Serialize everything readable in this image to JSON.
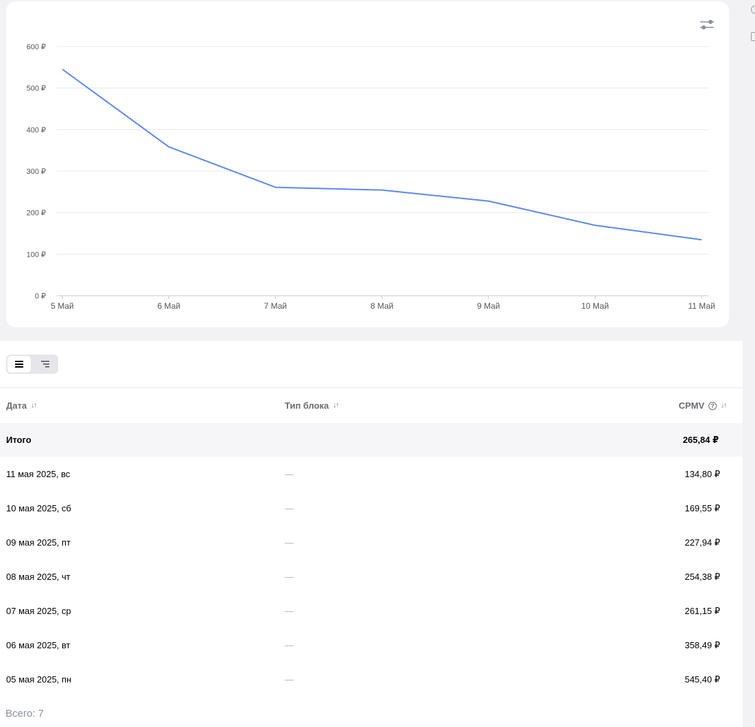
{
  "chart_data": {
    "type": "line",
    "categories": [
      "5 Май",
      "6 Май",
      "7 Май",
      "8 Май",
      "9 Май",
      "10 Май",
      "11 Май"
    ],
    "series": [
      {
        "values": [
          545.4,
          358.49,
          261.15,
          254.38,
          227.94,
          169.55,
          134.8
        ]
      }
    ],
    "y_ticks": [
      "0 ₽",
      "100 ₽",
      "200 ₽",
      "300 ₽",
      "400 ₽",
      "500 ₽",
      "600 ₽"
    ],
    "ylim": [
      0,
      600
    ],
    "grid": true,
    "line_color": "#5b87f5"
  },
  "chart_toolbar": {
    "settings_icon": "sliders-icon"
  },
  "view_toggle": {
    "list_icon": "list-icon",
    "tree_icon": "tree-icon"
  },
  "table": {
    "headers": {
      "date": "Дата",
      "block_type": "Тип блока",
      "cpmv": "CPMV"
    },
    "sort_icon": "↓↑",
    "help_icon": "?",
    "total": {
      "label": "Итого",
      "value": "265,84 ₽"
    },
    "rows": [
      {
        "date": "11 мая 2025, вс",
        "type": "—",
        "value": "134,80 ₽"
      },
      {
        "date": "10 мая 2025, сб",
        "type": "—",
        "value": "169,55 ₽"
      },
      {
        "date": "09 мая 2025, пт",
        "type": "—",
        "value": "227,94 ₽"
      },
      {
        "date": "08 мая 2025, чт",
        "type": "—",
        "value": "254,38 ₽"
      },
      {
        "date": "07 мая 2025, ср",
        "type": "—",
        "value": "261,15 ₽"
      },
      {
        "date": "06 мая 2025, вт",
        "type": "—",
        "value": "358,49 ₽"
      },
      {
        "date": "05 мая 2025, пн",
        "type": "—",
        "value": "545,40 ₽"
      }
    ],
    "footer": "Всего: 7"
  }
}
